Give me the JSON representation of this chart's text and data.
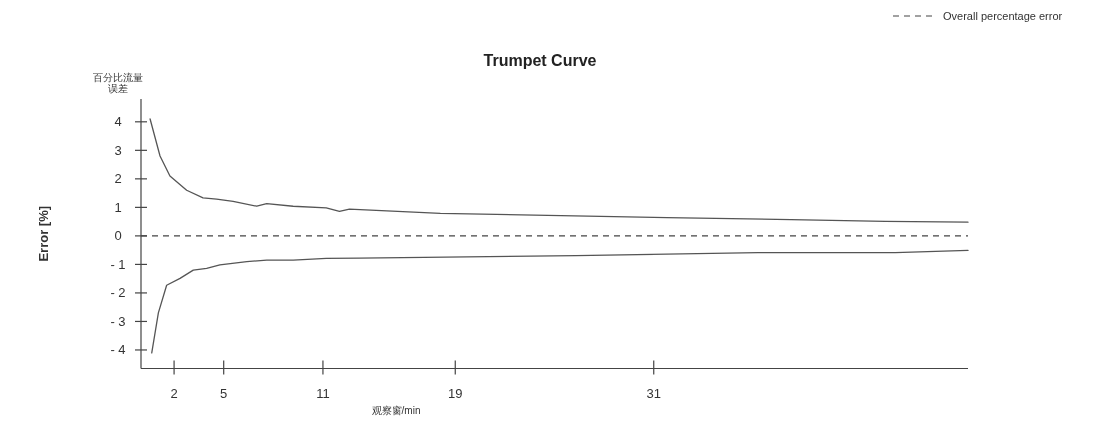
{
  "chart_data": {
    "type": "line",
    "title": "Trumpet Curve",
    "ylabel": "Error [%]",
    "xlabel": "观察窗/min",
    "annotations": [
      "百分比流量误差"
    ],
    "legend": "top right",
    "xlim": [
      0,
      50
    ],
    "xticks": [
      2,
      5,
      11,
      19,
      31
    ],
    "ylim": [
      -4.65,
      4.8
    ],
    "yticks": [
      {
        "value": -4,
        "label": "- 4"
      },
      {
        "value": -3,
        "label": "- 3"
      },
      {
        "value": -2,
        "label": "- 2"
      },
      {
        "value": -1,
        "label": "- 1"
      },
      0,
      1,
      2,
      3,
      4
    ],
    "ref_lines": [
      {
        "axis": "y",
        "value": 0,
        "label": "Overall percentage error",
        "color": "#444444",
        "line_style": "dashed"
      }
    ],
    "series": [
      {
        "color": "#555555",
        "x": [
          0.55,
          1.15,
          1.75,
          2.76,
          3.75,
          4.57,
          5.57,
          7.0,
          7.6,
          9.2,
          11.2,
          12.0,
          12.6,
          18.1,
          31.8,
          39.3,
          45,
          50
        ],
        "values": [
          4.1,
          2.8,
          2.1,
          1.6,
          1.33,
          1.29,
          1.21,
          1.04,
          1.13,
          1.04,
          0.98,
          0.86,
          0.94,
          0.79,
          0.64,
          0.57,
          0.51,
          0.48
        ]
      },
      {
        "color": "#555555",
        "x": [
          0.65,
          1.05,
          1.55,
          2.36,
          3.16,
          3.97,
          4.77,
          6.4,
          7.6,
          9.2,
          11.2,
          13.2,
          26.3,
          37.3,
          45.6,
          50
        ],
        "values": [
          -4.1,
          -2.7,
          -1.73,
          -1.49,
          -1.2,
          -1.14,
          -1.02,
          -0.9,
          -0.85,
          -0.85,
          -0.79,
          -0.78,
          -0.69,
          -0.59,
          -0.59,
          -0.51
        ]
      }
    ]
  }
}
